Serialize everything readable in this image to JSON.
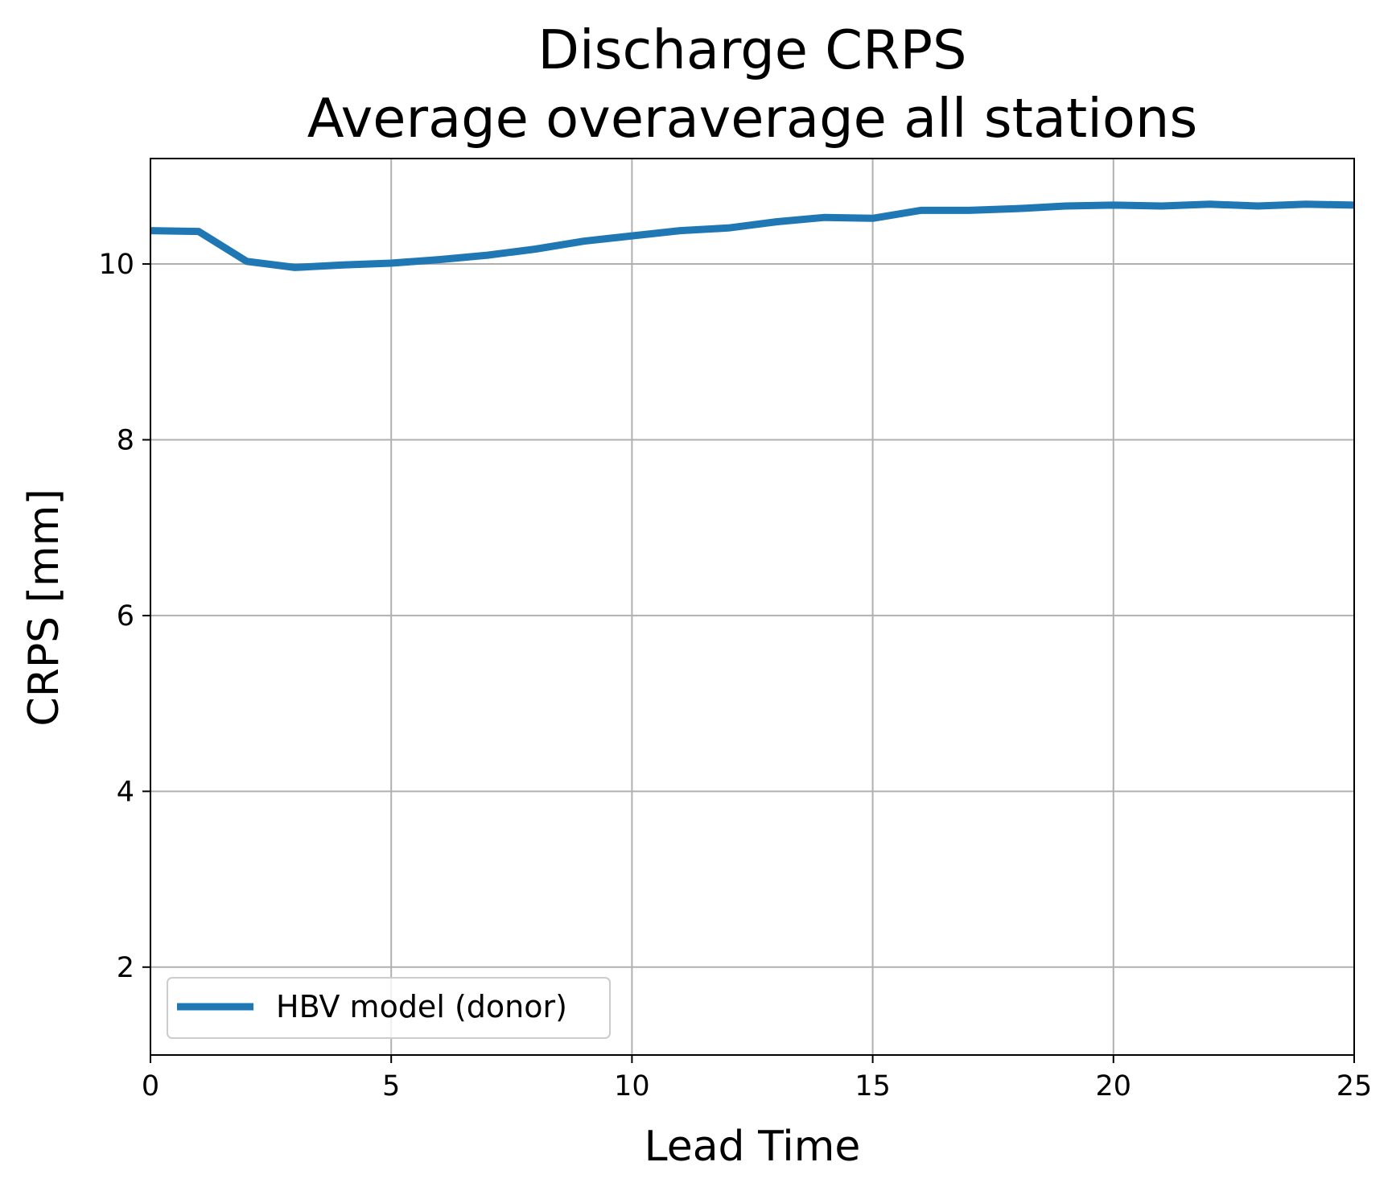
{
  "chart_data": {
    "type": "line",
    "title": "Discharge CRPS",
    "subtitle": "Average overaverage all stations",
    "xlabel": "Lead Time",
    "ylabel": "CRPS [mm]",
    "xlim": [
      0,
      25
    ],
    "ylim": [
      1.0,
      11.2
    ],
    "xticks": [
      "0",
      "5",
      "10",
      "15",
      "20",
      "25"
    ],
    "yticks": [
      "2",
      "4",
      "6",
      "8",
      "10"
    ],
    "grid": true,
    "legend_position": "lower-left",
    "series": [
      {
        "name": "HBV model (donor)",
        "color": "#1f77b4",
        "x": [
          0,
          1,
          2,
          3,
          4,
          5,
          6,
          7,
          8,
          9,
          10,
          11,
          12,
          13,
          14,
          15,
          16,
          17,
          18,
          19,
          20,
          21,
          22,
          23,
          24,
          25
        ],
        "y": [
          10.38,
          10.37,
          10.03,
          9.96,
          9.99,
          10.01,
          10.05,
          10.1,
          10.17,
          10.26,
          10.32,
          10.38,
          10.41,
          10.48,
          10.53,
          10.52,
          10.61,
          10.61,
          10.63,
          10.66,
          10.67,
          10.66,
          10.68,
          10.66,
          10.68,
          10.67
        ]
      }
    ]
  }
}
